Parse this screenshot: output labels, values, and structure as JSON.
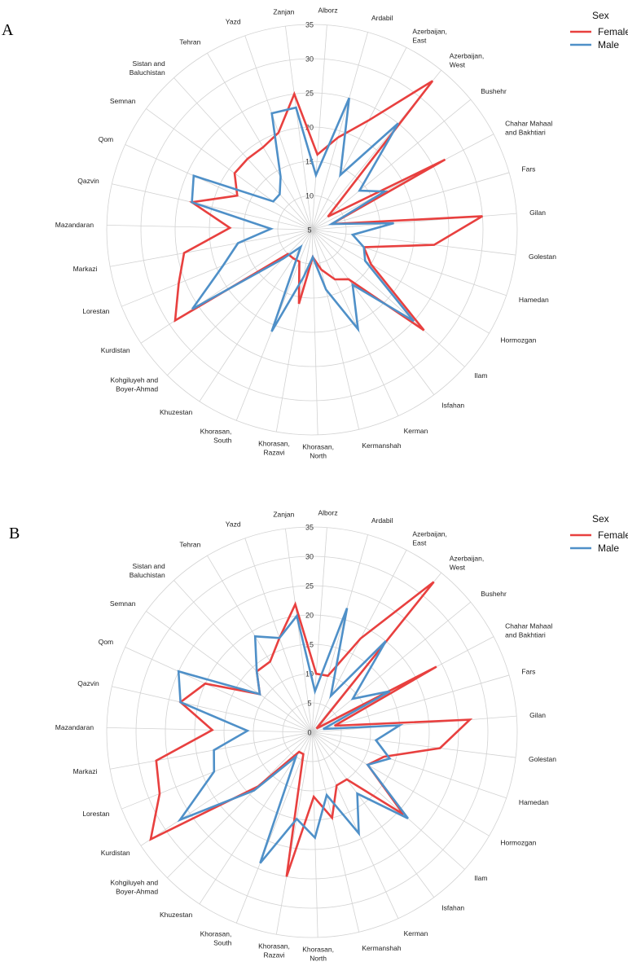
{
  "categories": [
    "Alborz",
    "Ardabil",
    "Azerbaijan, East",
    "Azerbaijan, West",
    "Bushehr",
    "Chahar Mahaal and Bakhtiari",
    "Fars",
    "Gilan",
    "Golestan",
    "Hamedan",
    "Hormozgan",
    "Ilam",
    "Isfahan",
    "Kerman",
    "Kermanshah",
    "Khorasan, North",
    "Khorasan, Razavi",
    "Khorasan, South",
    "Khuzestan",
    "Kohgiluyeh and Boyer-Ahmad",
    "Kurdistan",
    "Lorestan",
    "Markazi",
    "Mazandaran",
    "Qazvin",
    "Qom",
    "Semnan",
    "Sistan and Baluchistan",
    "Tehran",
    "Yazd",
    "Zanjan"
  ],
  "legend": {
    "title": "Sex",
    "entries": [
      "Female",
      "Male"
    ]
  },
  "colors": {
    "Female": "#e8403f",
    "Male": "#4f90c8",
    "grid": "#d2d2d2"
  },
  "chart_data": [
    {
      "panel": "A",
      "type": "radar",
      "title": "",
      "ylim": [
        5,
        35
      ],
      "ticks": [
        5,
        10,
        15,
        20,
        25,
        30,
        35
      ],
      "series": [
        {
          "name": "Female",
          "values": [
            16,
            19,
            23,
            33,
            8,
            27,
            8,
            30,
            23,
            13,
            15,
            27,
            14,
            13,
            11,
            9,
            16,
            10,
            10,
            10,
            29,
            26,
            24,
            17,
            23,
            17,
            19,
            19,
            19,
            20,
            25
          ]
        },
        {
          "name": "Male",
          "values": [
            13,
            25,
            14,
            25,
            14,
            17,
            8,
            17,
            11,
            13,
            14,
            25,
            15,
            21,
            14,
            9,
            12,
            21,
            8,
            11,
            26,
            19,
            16,
            11,
            23,
            24,
            12,
            12,
            14,
            23,
            23
          ]
        }
      ]
    },
    {
      "panel": "B",
      "type": "radar",
      "title": "",
      "ylim": [
        0,
        35
      ],
      "ticks": [
        0,
        5,
        10,
        15,
        20,
        25,
        30,
        35
      ],
      "series": [
        {
          "name": "Female",
          "values": [
            10,
            10,
            18,
            33,
            1,
            24,
            4,
            27,
            22,
            13,
            11,
            21,
            10,
            10,
            15,
            11,
            25,
            4,
            4,
            13,
            33,
            28,
            27,
            17,
            23,
            20,
            11,
            14,
            14,
            17,
            22
          ]
        },
        {
          "name": "Male",
          "values": [
            7,
            22,
            7,
            20,
            9,
            15,
            2,
            15,
            11,
            14,
            11,
            22,
            13,
            19,
            11,
            18,
            15,
            24,
            5,
            14,
            27,
            18,
            17,
            11,
            23,
            25,
            11,
            14,
            19,
            17,
            20
          ]
        }
      ]
    }
  ]
}
